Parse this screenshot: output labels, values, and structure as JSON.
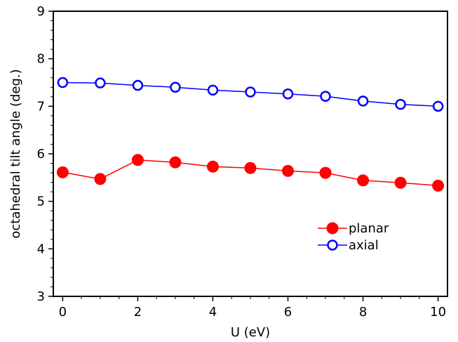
{
  "chart_data": {
    "type": "line",
    "x": [
      0,
      1,
      2,
      3,
      4,
      5,
      6,
      7,
      8,
      9,
      10
    ],
    "series": [
      {
        "name": "planar",
        "color": "#ff0000",
        "marker": "filled-circle",
        "values": [
          5.61,
          5.47,
          5.87,
          5.82,
          5.73,
          5.7,
          5.64,
          5.6,
          5.44,
          5.39,
          5.33
        ]
      },
      {
        "name": "axial",
        "color": "#0000ff",
        "marker": "open-circle",
        "values": [
          7.5,
          7.49,
          7.44,
          7.4,
          7.34,
          7.3,
          7.26,
          7.21,
          7.11,
          7.04,
          7.0
        ]
      }
    ],
    "xlabel": "U (eV)",
    "ylabel": "octahedral tilt angle (deg.)",
    "xlim": [
      -0.25,
      10.25
    ],
    "ylim": [
      3,
      9
    ],
    "xticks": [
      0,
      2,
      4,
      6,
      8,
      10
    ],
    "yticks": [
      3,
      4,
      5,
      6,
      7,
      8,
      9
    ],
    "grid": false,
    "legend_position": "lower-right"
  }
}
